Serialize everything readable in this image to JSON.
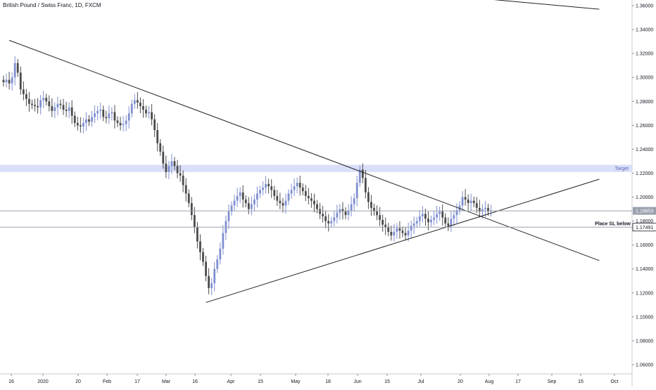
{
  "chart_data": {
    "type": "candlestick",
    "title": "British Pound / Swiss Franc, 1D, FXCM",
    "colors": {
      "up": "#7f8fcf",
      "down": "#4b4b4b",
      "trendline": "#222222",
      "zone": "#dadff9",
      "price_line": "#9aa0ad",
      "price_badge": "#9aa0ad",
      "axis_text": "#131722",
      "grid": "#e1e3e8"
    },
    "x_axis": {
      "tick_labels": [
        "16",
        "2020",
        "20",
        "Feb",
        "17",
        "Mar",
        "16",
        "Apr",
        "15",
        "May",
        "18",
        "Jun",
        "15",
        "Jul",
        "20",
        "Aug",
        "17",
        "Sep",
        "15",
        "Oct"
      ]
    },
    "y_axis": {
      "range": [
        1.05,
        1.365
      ],
      "tick_labels": [
        "1.36000",
        "1.34000",
        "1.32000",
        "1.30000",
        "1.28000",
        "1.26000",
        "1.24000",
        "1.22000",
        "1.20000",
        "1.18000",
        "1.16000",
        "1.14000",
        "1.12000",
        "1.10000",
        "1.08000",
        "1.06000"
      ],
      "tick_values": [
        1.36,
        1.34,
        1.32,
        1.3,
        1.28,
        1.26,
        1.24,
        1.22,
        1.2,
        1.18,
        1.16,
        1.14,
        1.12,
        1.1,
        1.08,
        1.06
      ]
    },
    "candles_close": [
      1.296,
      1.298,
      1.295,
      1.3,
      1.312,
      1.304,
      1.29,
      1.286,
      1.282,
      1.278,
      1.277,
      1.276,
      1.275,
      1.281,
      1.283,
      1.28,
      1.276,
      1.272,
      1.275,
      1.278,
      1.277,
      1.273,
      1.272,
      1.275,
      1.268,
      1.262,
      1.26,
      1.259,
      1.262,
      1.265,
      1.263,
      1.267,
      1.27,
      1.272,
      1.273,
      1.267,
      1.266,
      1.27,
      1.271,
      1.264,
      1.262,
      1.26,
      1.261,
      1.264,
      1.27,
      1.278,
      1.281,
      1.279,
      1.276,
      1.273,
      1.27,
      1.271,
      1.265,
      1.256,
      1.245,
      1.238,
      1.228,
      1.221,
      1.226,
      1.23,
      1.226,
      1.22,
      1.218,
      1.21,
      1.203,
      1.195,
      1.185,
      1.175,
      1.163,
      1.154,
      1.146,
      1.134,
      1.124,
      1.128,
      1.14,
      1.148,
      1.157,
      1.17,
      1.18,
      1.188,
      1.193,
      1.197,
      1.201,
      1.204,
      1.198,
      1.195,
      1.19,
      1.194,
      1.198,
      1.203,
      1.206,
      1.208,
      1.211,
      1.209,
      1.206,
      1.201,
      1.197,
      1.195,
      1.193,
      1.197,
      1.203,
      1.206,
      1.209,
      1.212,
      1.208,
      1.205,
      1.201,
      1.199,
      1.197,
      1.194,
      1.19,
      1.186,
      1.184,
      1.18,
      1.178,
      1.18,
      1.183,
      1.187,
      1.19,
      1.188,
      1.185,
      1.189,
      1.194,
      1.199,
      1.212,
      1.223,
      1.216,
      1.204,
      1.196,
      1.191,
      1.188,
      1.185,
      1.181,
      1.177,
      1.175,
      1.171,
      1.168,
      1.171,
      1.174,
      1.172,
      1.17,
      1.168,
      1.172,
      1.176,
      1.178,
      1.18,
      1.184,
      1.186,
      1.182,
      1.179,
      1.181,
      1.183,
      1.186,
      1.188,
      1.183,
      1.178,
      1.176,
      1.182,
      1.185,
      1.189,
      1.193,
      1.2,
      1.198,
      1.195,
      1.197,
      1.195,
      1.191,
      1.188,
      1.19,
      1.191,
      1.188,
      1.1885
    ],
    "trendlines": [
      {
        "role": "descending-resistance",
        "from": {
          "bar": 2,
          "price": 1.331
        },
        "to": {
          "bar": 209,
          "price": 1.147
        }
      },
      {
        "role": "ascending-support",
        "from": {
          "bar": 71,
          "price": 1.112
        },
        "to": {
          "bar": 209,
          "price": 1.215
        }
      },
      {
        "role": "upper-edge",
        "from": {
          "bar": 158,
          "price": 1.368
        },
        "to": {
          "bar": 209,
          "price": 1.357
        }
      }
    ],
    "zones": [
      {
        "label": "Target",
        "top": 1.227,
        "bottom": 1.221
      }
    ],
    "levels": [
      {
        "role": "current-price",
        "value": 1.18853,
        "badge": "1.18853",
        "style": "gray-badge"
      },
      {
        "role": "stop-loss",
        "value": 1.17491,
        "badge": "1.17491",
        "note": "Place SL below",
        "style": "white-badge"
      }
    ]
  }
}
